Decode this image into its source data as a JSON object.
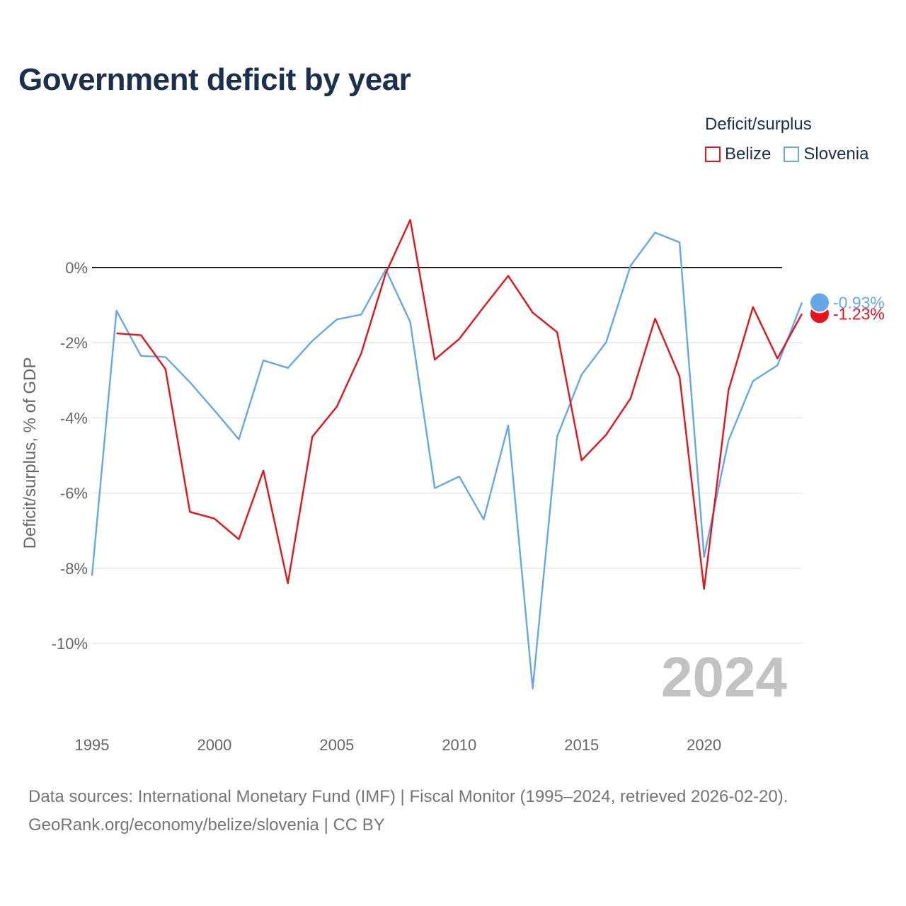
{
  "title": "Government deficit by year",
  "legend": {
    "title": "Deficit/surplus",
    "items": [
      {
        "name": "Belize",
        "color": "#e8121a"
      },
      {
        "name": "Slovenia",
        "color": "#64a8e8"
      }
    ]
  },
  "footer": {
    "line1": "Data sources: International Monetary Fund (IMF) | Fiscal Monitor (1995–2024, retrieved 2026-02-20).",
    "line2": "GeoRank.org/economy/belize/slovenia | CC BY"
  },
  "chart_data": {
    "type": "line",
    "ylabel": "Deficit/surplus, % of GDP",
    "xlim": [
      1995,
      2024
    ],
    "ylim": [
      -12,
      2
    ],
    "x_ticks": [
      1995,
      2000,
      2005,
      2010,
      2015,
      2020
    ],
    "y_ticks": [
      0,
      -2,
      -4,
      -6,
      -8,
      -10
    ],
    "y_tick_labels": [
      "0%",
      "-2%",
      "-4%",
      "-6%",
      "-8%",
      "-10%"
    ],
    "year_label": "2024",
    "series": [
      {
        "name": "Belize",
        "color": "#e8121a",
        "end_label": "-1.23%",
        "x": [
          1996,
          1997,
          1998,
          1999,
          2000,
          2001,
          2002,
          2003,
          2004,
          2005,
          2006,
          2007,
          2008,
          2009,
          2010,
          2011,
          2012,
          2013,
          2014,
          2015,
          2016,
          2017,
          2018,
          2019,
          2020,
          2021,
          2022,
          2023,
          2024
        ],
        "values": [
          -1.75,
          -1.8,
          -2.7,
          -6.5,
          -6.68,
          -7.23,
          -5.4,
          -8.4,
          -4.5,
          -3.7,
          -2.28,
          -0.15,
          1.27,
          -2.45,
          -1.9,
          -1.05,
          -0.22,
          -1.2,
          -1.72,
          -5.13,
          -4.45,
          -3.48,
          -1.36,
          -2.9,
          -8.55,
          -3.27,
          -1.05,
          -2.42,
          -1.23
        ]
      },
      {
        "name": "Slovenia",
        "color": "#64a8e8",
        "end_label": "-0.93%",
        "x": [
          1995,
          1996,
          1997,
          1998,
          1999,
          2000,
          2001,
          2002,
          2003,
          2004,
          2005,
          2006,
          2007,
          2008,
          2009,
          2010,
          2011,
          2012,
          2013,
          2014,
          2015,
          2016,
          2017,
          2018,
          2019,
          2020,
          2021,
          2022,
          2023,
          2024
        ],
        "values": [
          -8.2,
          -1.15,
          -2.35,
          -2.38,
          -3.05,
          -3.8,
          -4.57,
          -2.47,
          -2.67,
          -1.95,
          -1.38,
          -1.25,
          -0.05,
          -1.45,
          -5.87,
          -5.56,
          -6.7,
          -4.2,
          -11.2,
          -4.5,
          -2.85,
          -1.99,
          0.05,
          0.93,
          0.67,
          -7.7,
          -4.6,
          -3.02,
          -2.6,
          -0.93
        ]
      }
    ]
  }
}
